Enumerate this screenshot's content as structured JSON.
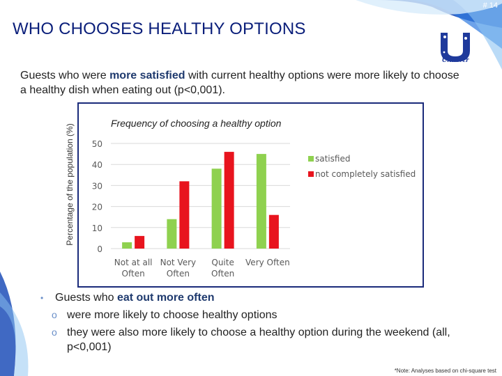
{
  "slide": {
    "number": "# 14",
    "title": "WHO CHOOSES HEALTHY OPTIONS",
    "logo_text": "Unilever",
    "intro_before": "Guests who were ",
    "intro_highlight": "more satisfied",
    "intro_after": " with current healthy options were more likely to choose a healthy dish when eating out (p<0,001).",
    "bullet_main_before": "Guests who ",
    "bullet_main_highlight": "eat out more often",
    "sub_bullets": [
      "were more likely to choose healthy options",
      "they were also more likely to choose a healthy option during the weekend (all, p<0,001)"
    ],
    "footnote": "*Note: Analyses based on chi-square test"
  },
  "colors": {
    "satisfied": "#8fd14f",
    "not_satisfied": "#e8141e",
    "title": "#0a1e7a",
    "frame": "#1a2a7a"
  },
  "chart_data": {
    "type": "bar",
    "title": "Frequency of choosing a healthy option",
    "ylabel": "Percentage of the population (%)",
    "xlabel": "",
    "categories": [
      [
        "Not at all",
        "Often"
      ],
      [
        "Not Very",
        "Often"
      ],
      [
        "Quite",
        "Often"
      ],
      [
        "Very Often"
      ]
    ],
    "series": [
      {
        "name": "satisfied",
        "values": [
          3,
          14,
          38,
          45
        ]
      },
      {
        "name": "not completely satisfied",
        "values": [
          6,
          32,
          46,
          16
        ]
      }
    ],
    "ylim": [
      0,
      50
    ],
    "yticks": [
      0,
      10,
      20,
      30,
      40,
      50
    ],
    "grid": true,
    "legend": "right"
  }
}
